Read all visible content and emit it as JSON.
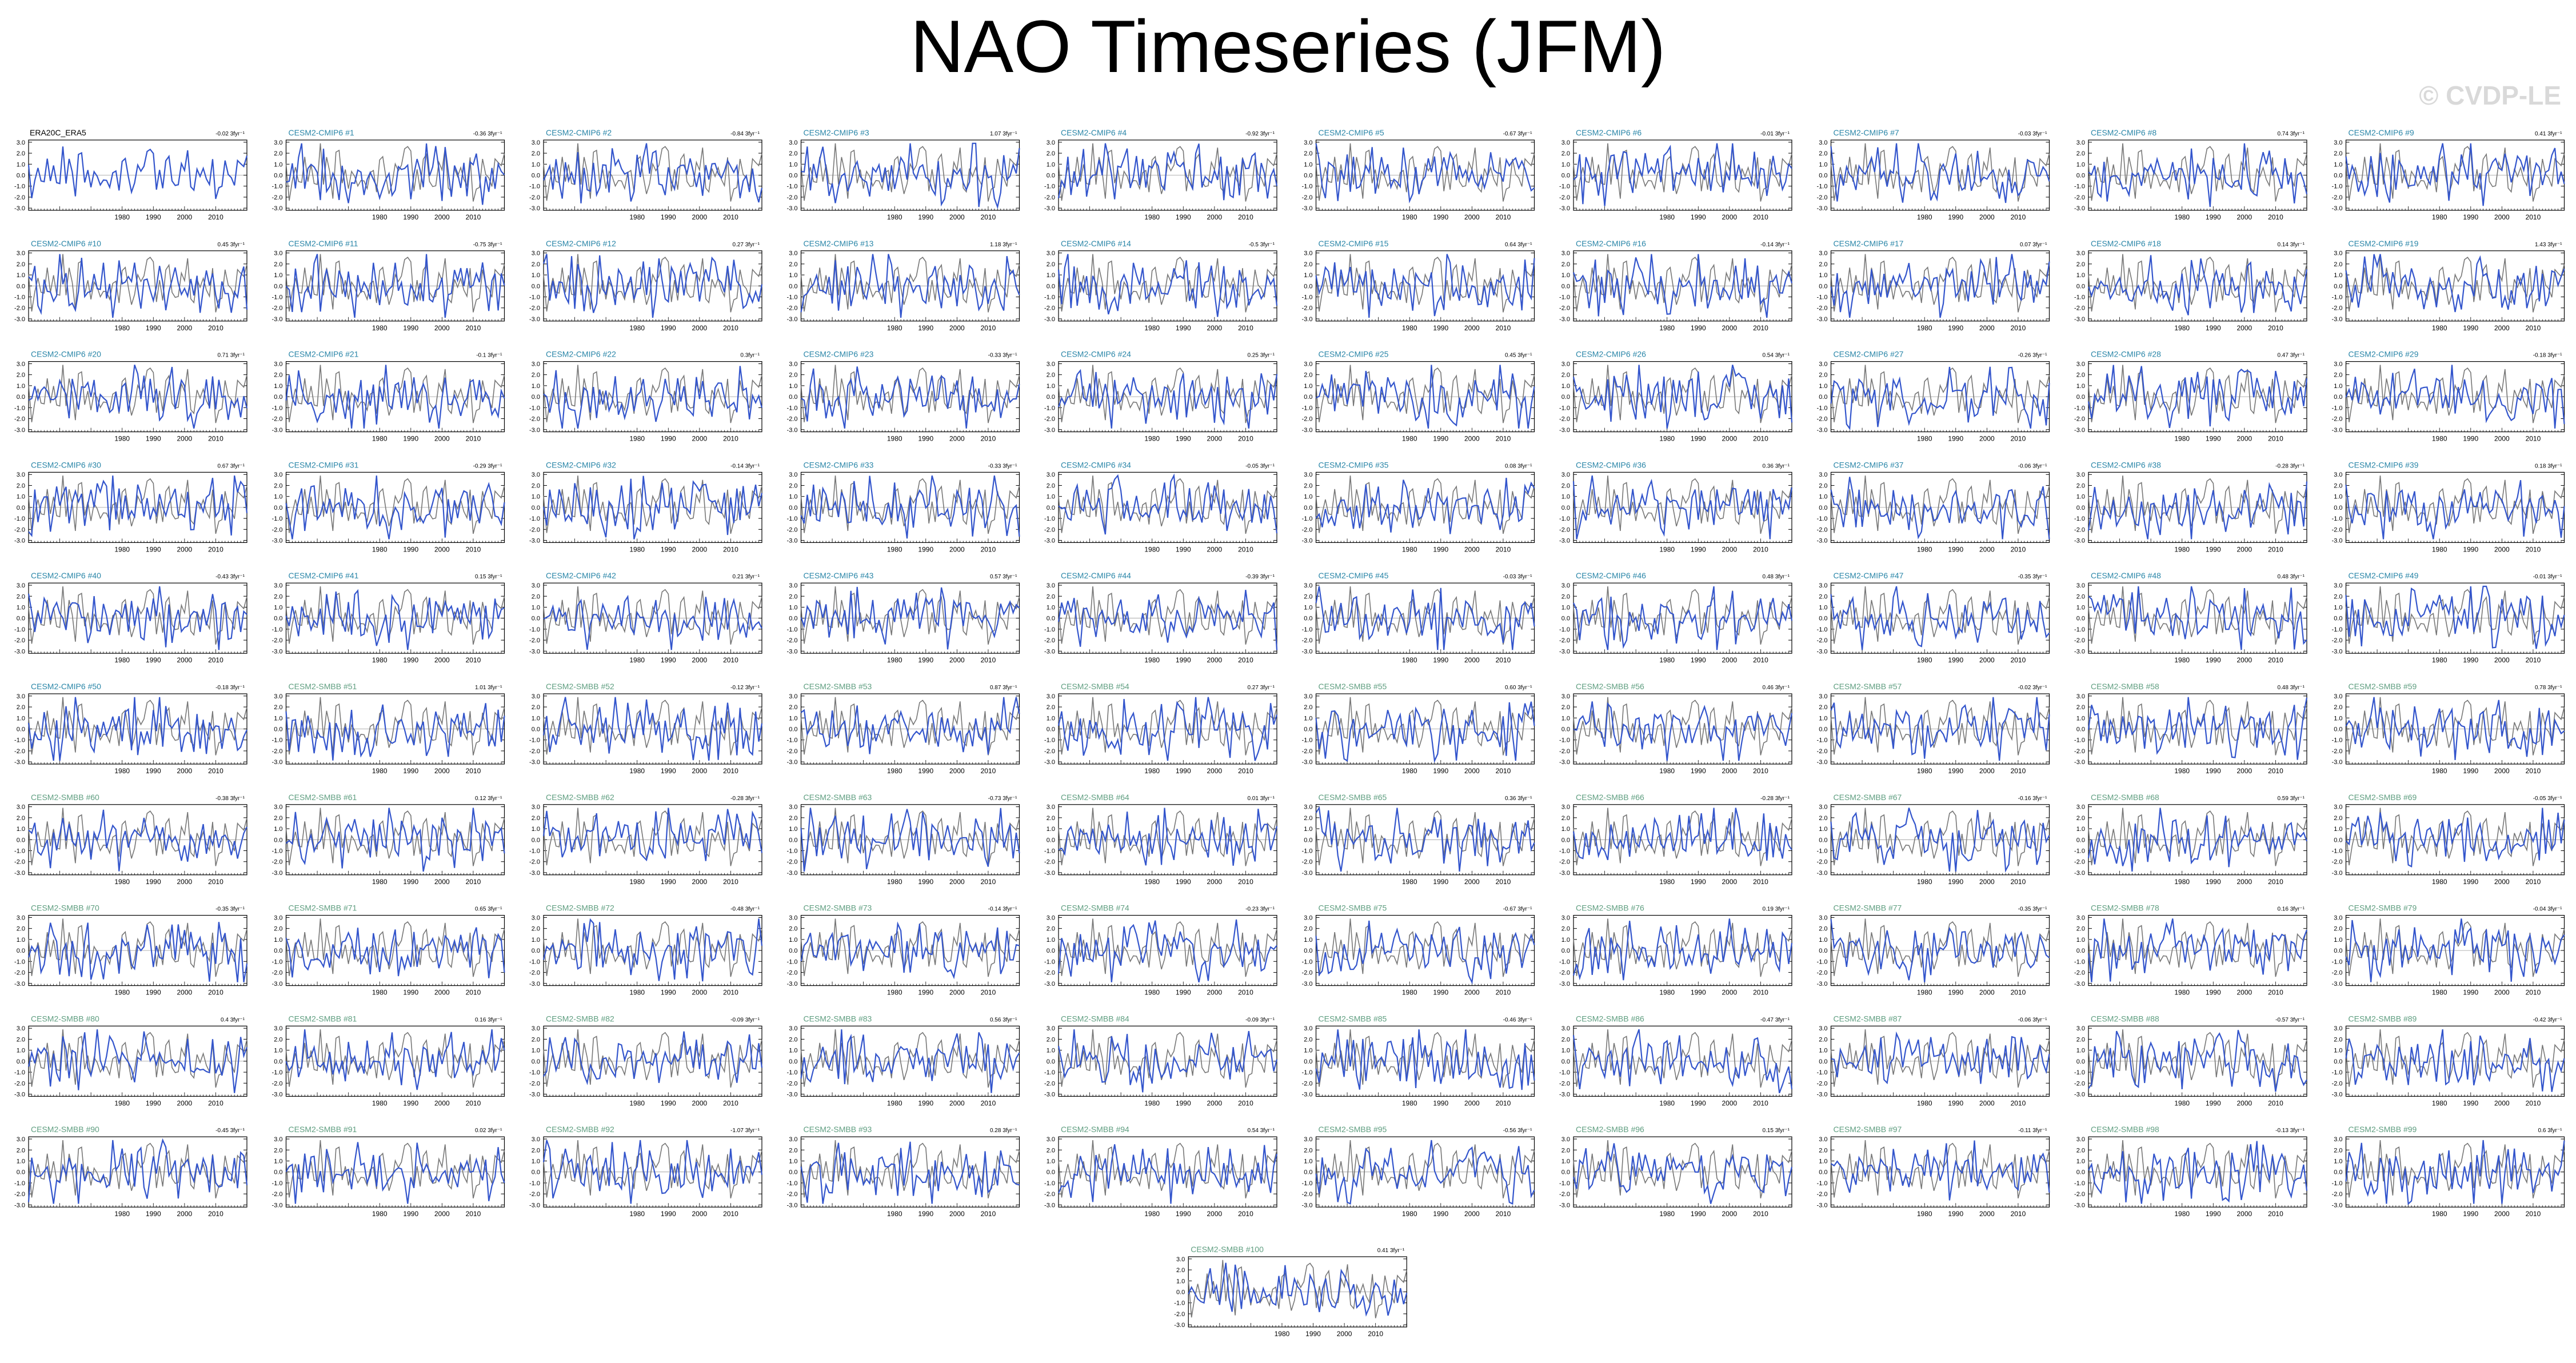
{
  "title": "NAO Timeseries (JFM)",
  "watermark": "© CVDP-LE",
  "colors": {
    "observed": "#777777",
    "model": "#3355cc",
    "cmip6_label": "#2a86a8",
    "smbb_label": "#5f9e80",
    "obs_label": "#000000"
  },
  "chart_data": {
    "type": "line",
    "years": [
      1950,
      2020
    ],
    "x_ticks": [
      1980,
      1990,
      2000,
      2010
    ],
    "y_ticks": [
      "3.0",
      "2.0",
      "1.0",
      "0.0",
      "-1.0",
      "-2.0",
      "-3.0"
    ],
    "ylim": [
      -3.2,
      3.2
    ],
    "panels": [
      {
        "label": "ERA20C_ERA5",
        "trend": "-0.02 3fyr⁻¹",
        "group": "obs"
      },
      {
        "label": "CESM2-CMIP6 #1",
        "trend": "-0.36 3fyr⁻¹",
        "group": "cmip6"
      },
      {
        "label": "CESM2-CMIP6 #2",
        "trend": "-0.84 3fyr⁻¹",
        "group": "cmip6"
      },
      {
        "label": "CESM2-CMIP6 #3",
        "trend": "1.07 3fyr⁻¹",
        "group": "cmip6"
      },
      {
        "label": "CESM2-CMIP6 #4",
        "trend": "-0.92 3fyr⁻¹",
        "group": "cmip6"
      },
      {
        "label": "CESM2-CMIP6 #5",
        "trend": "-0.67 3fyr⁻¹",
        "group": "cmip6"
      },
      {
        "label": "CESM2-CMIP6 #6",
        "trend": "-0.01 3fyr⁻¹",
        "group": "cmip6"
      },
      {
        "label": "CESM2-CMIP6 #7",
        "trend": "-0.03 3fyr⁻¹",
        "group": "cmip6"
      },
      {
        "label": "CESM2-CMIP6 #8",
        "trend": "0.74 3fyr⁻¹",
        "group": "cmip6"
      },
      {
        "label": "CESM2-CMIP6 #9",
        "trend": "0.41 3fyr⁻¹",
        "group": "cmip6"
      },
      {
        "label": "CESM2-CMIP6 #10",
        "trend": "0.45 3fyr⁻¹",
        "group": "cmip6"
      },
      {
        "label": "CESM2-CMIP6 #11",
        "trend": "-0.75 3fyr⁻¹",
        "group": "cmip6"
      },
      {
        "label": "CESM2-CMIP6 #12",
        "trend": "0.27 3fyr⁻¹",
        "group": "cmip6"
      },
      {
        "label": "CESM2-CMIP6 #13",
        "trend": "1.18 3fyr⁻¹",
        "group": "cmip6"
      },
      {
        "label": "CESM2-CMIP6 #14",
        "trend": "-0.5 3fyr⁻¹",
        "group": "cmip6"
      },
      {
        "label": "CESM2-CMIP6 #15",
        "trend": "0.64 3fyr⁻¹",
        "group": "cmip6"
      },
      {
        "label": "CESM2-CMIP6 #16",
        "trend": "-0.14 3fyr⁻¹",
        "group": "cmip6"
      },
      {
        "label": "CESM2-CMIP6 #17",
        "trend": "0.07 3fyr⁻¹",
        "group": "cmip6"
      },
      {
        "label": "CESM2-CMIP6 #18",
        "trend": "0.14 3fyr⁻¹",
        "group": "cmip6"
      },
      {
        "label": "CESM2-CMIP6 #19",
        "trend": "1.43 3fyr⁻¹",
        "group": "cmip6"
      },
      {
        "label": "CESM2-CMIP6 #20",
        "trend": "0.71 3fyr⁻¹",
        "group": "cmip6"
      },
      {
        "label": "CESM2-CMIP6 #21",
        "trend": "-0.1 3fyr⁻¹",
        "group": "cmip6"
      },
      {
        "label": "CESM2-CMIP6 #22",
        "trend": "0.3fyr⁻¹",
        "group": "cmip6"
      },
      {
        "label": "CESM2-CMIP6 #23",
        "trend": "-0.33 3fyr⁻¹",
        "group": "cmip6"
      },
      {
        "label": "CESM2-CMIP6 #24",
        "trend": "0.25 3fyr⁻¹",
        "group": "cmip6"
      },
      {
        "label": "CESM2-CMIP6 #25",
        "trend": "0.45 3fyr⁻¹",
        "group": "cmip6"
      },
      {
        "label": "CESM2-CMIP6 #26",
        "trend": "0.54 3fyr⁻¹",
        "group": "cmip6"
      },
      {
        "label": "CESM2-CMIP6 #27",
        "trend": "-0.26 3fyr⁻¹",
        "group": "cmip6"
      },
      {
        "label": "CESM2-CMIP6 #28",
        "trend": "0.47 3fyr⁻¹",
        "group": "cmip6"
      },
      {
        "label": "CESM2-CMIP6 #29",
        "trend": "-0.18 3fyr⁻¹",
        "group": "cmip6"
      },
      {
        "label": "CESM2-CMIP6 #30",
        "trend": "0.67 3fyr⁻¹",
        "group": "cmip6"
      },
      {
        "label": "CESM2-CMIP6 #31",
        "trend": "-0.29 3fyr⁻¹",
        "group": "cmip6"
      },
      {
        "label": "CESM2-CMIP6 #32",
        "trend": "-0.14 3fyr⁻¹",
        "group": "cmip6"
      },
      {
        "label": "CESM2-CMIP6 #33",
        "trend": "-0.33 3fyr⁻¹",
        "group": "cmip6"
      },
      {
        "label": "CESM2-CMIP6 #34",
        "trend": "-0.05 3fyr⁻¹",
        "group": "cmip6"
      },
      {
        "label": "CESM2-CMIP6 #35",
        "trend": "0.08 3fyr⁻¹",
        "group": "cmip6"
      },
      {
        "label": "CESM2-CMIP6 #36",
        "trend": "0.36 3fyr⁻¹",
        "group": "cmip6"
      },
      {
        "label": "CESM2-CMIP6 #37",
        "trend": "-0.06 3fyr⁻¹",
        "group": "cmip6"
      },
      {
        "label": "CESM2-CMIP6 #38",
        "trend": "-0.28 3fyr⁻¹",
        "group": "cmip6"
      },
      {
        "label": "CESM2-CMIP6 #39",
        "trend": "0.18 3fyr⁻¹",
        "group": "cmip6"
      },
      {
        "label": "CESM2-CMIP6 #40",
        "trend": "-0.43 3fyr⁻¹",
        "group": "cmip6"
      },
      {
        "label": "CESM2-CMIP6 #41",
        "trend": "0.15 3fyr⁻¹",
        "group": "cmip6"
      },
      {
        "label": "CESM2-CMIP6 #42",
        "trend": "0.21 3fyr⁻¹",
        "group": "cmip6"
      },
      {
        "label": "CESM2-CMIP6 #43",
        "trend": "0.57 3fyr⁻¹",
        "group": "cmip6"
      },
      {
        "label": "CESM2-CMIP6 #44",
        "trend": "-0.39 3fyr⁻¹",
        "group": "cmip6"
      },
      {
        "label": "CESM2-CMIP6 #45",
        "trend": "-0.03 3fyr⁻¹",
        "group": "cmip6"
      },
      {
        "label": "CESM2-CMIP6 #46",
        "trend": "0.48 3fyr⁻¹",
        "group": "cmip6"
      },
      {
        "label": "CESM2-CMIP6 #47",
        "trend": "-0.35 3fyr⁻¹",
        "group": "cmip6"
      },
      {
        "label": "CESM2-CMIP6 #48",
        "trend": "0.48 3fyr⁻¹",
        "group": "cmip6"
      },
      {
        "label": "CESM2-CMIP6 #49",
        "trend": "-0.01 3fyr⁻¹",
        "group": "cmip6"
      },
      {
        "label": "CESM2-CMIP6 #50",
        "trend": "-0.18 3fyr⁻¹",
        "group": "cmip6"
      },
      {
        "label": "CESM2-SMBB #51",
        "trend": "1.01 3fyr⁻¹",
        "group": "smbb"
      },
      {
        "label": "CESM2-SMBB #52",
        "trend": "-0.12 3fyr⁻¹",
        "group": "smbb"
      },
      {
        "label": "CESM2-SMBB #53",
        "trend": "0.87 3fyr⁻¹",
        "group": "smbb"
      },
      {
        "label": "CESM2-SMBB #54",
        "trend": "0.27 3fyr⁻¹",
        "group": "smbb"
      },
      {
        "label": "CESM2-SMBB #55",
        "trend": "0.60 3fyr⁻¹",
        "group": "smbb"
      },
      {
        "label": "CESM2-SMBB #56",
        "trend": "0.46 3fyr⁻¹",
        "group": "smbb"
      },
      {
        "label": "CESM2-SMBB #57",
        "trend": "-0.02 3fyr⁻¹",
        "group": "smbb"
      },
      {
        "label": "CESM2-SMBB #58",
        "trend": "0.48 3fyr⁻¹",
        "group": "smbb"
      },
      {
        "label": "CESM2-SMBB #59",
        "trend": "0.78 3fyr⁻¹",
        "group": "smbb"
      },
      {
        "label": "CESM2-SMBB #60",
        "trend": "-0.38 3fyr⁻¹",
        "group": "smbb"
      },
      {
        "label": "CESM2-SMBB #61",
        "trend": "0.12 3fyr⁻¹",
        "group": "smbb"
      },
      {
        "label": "CESM2-SMBB #62",
        "trend": "-0.28 3fyr⁻¹",
        "group": "smbb"
      },
      {
        "label": "CESM2-SMBB #63",
        "trend": "-0.73 3fyr⁻¹",
        "group": "smbb"
      },
      {
        "label": "CESM2-SMBB #64",
        "trend": "0.01 3fyr⁻¹",
        "group": "smbb"
      },
      {
        "label": "CESM2-SMBB #65",
        "trend": "0.36 3fyr⁻¹",
        "group": "smbb"
      },
      {
        "label": "CESM2-SMBB #66",
        "trend": "-0.28 3fyr⁻¹",
        "group": "smbb"
      },
      {
        "label": "CESM2-SMBB #67",
        "trend": "-0.16 3fyr⁻¹",
        "group": "smbb"
      },
      {
        "label": "CESM2-SMBB #68",
        "trend": "0.59 3fyr⁻¹",
        "group": "smbb"
      },
      {
        "label": "CESM2-SMBB #69",
        "trend": "-0.05 3fyr⁻¹",
        "group": "smbb"
      },
      {
        "label": "CESM2-SMBB #70",
        "trend": "-0.35 3fyr⁻¹",
        "group": "smbb"
      },
      {
        "label": "CESM2-SMBB #71",
        "trend": "0.65 3fyr⁻¹",
        "group": "smbb"
      },
      {
        "label": "CESM2-SMBB #72",
        "trend": "-0.48 3fyr⁻¹",
        "group": "smbb"
      },
      {
        "label": "CESM2-SMBB #73",
        "trend": "-0.14 3fyr⁻¹",
        "group": "smbb"
      },
      {
        "label": "CESM2-SMBB #74",
        "trend": "-0.23 3fyr⁻¹",
        "group": "smbb"
      },
      {
        "label": "CESM2-SMBB #75",
        "trend": "-0.67 3fyr⁻¹",
        "group": "smbb"
      },
      {
        "label": "CESM2-SMBB #76",
        "trend": "0.19 3fyr⁻¹",
        "group": "smbb"
      },
      {
        "label": "CESM2-SMBB #77",
        "trend": "-0.35 3fyr⁻¹",
        "group": "smbb"
      },
      {
        "label": "CESM2-SMBB #78",
        "trend": "0.16 3fyr⁻¹",
        "group": "smbb"
      },
      {
        "label": "CESM2-SMBB #79",
        "trend": "-0.04 3fyr⁻¹",
        "group": "smbb"
      },
      {
        "label": "CESM2-SMBB #80",
        "trend": "0.4 3fyr⁻¹",
        "group": "smbb"
      },
      {
        "label": "CESM2-SMBB #81",
        "trend": "0.16 3fyr⁻¹",
        "group": "smbb"
      },
      {
        "label": "CESM2-SMBB #82",
        "trend": "-0.09 3fyr⁻¹",
        "group": "smbb"
      },
      {
        "label": "CESM2-SMBB #83",
        "trend": "0.56 3fyr⁻¹",
        "group": "smbb"
      },
      {
        "label": "CESM2-SMBB #84",
        "trend": "-0.09 3fyr⁻¹",
        "group": "smbb"
      },
      {
        "label": "CESM2-SMBB #85",
        "trend": "-0.46 3fyr⁻¹",
        "group": "smbb"
      },
      {
        "label": "CESM2-SMBB #86",
        "trend": "-0.47 3fyr⁻¹",
        "group": "smbb"
      },
      {
        "label": "CESM2-SMBB #87",
        "trend": "-0.06 3fyr⁻¹",
        "group": "smbb"
      },
      {
        "label": "CESM2-SMBB #88",
        "trend": "-0.57 3fyr⁻¹",
        "group": "smbb"
      },
      {
        "label": "CESM2-SMBB #89",
        "trend": "-0.42 3fyr⁻¹",
        "group": "smbb"
      },
      {
        "label": "CESM2-SMBB #90",
        "trend": "-0.45 3fyr⁻¹",
        "group": "smbb"
      },
      {
        "label": "CESM2-SMBB #91",
        "trend": "0.02 3fyr⁻¹",
        "group": "smbb"
      },
      {
        "label": "CESM2-SMBB #92",
        "trend": "-1.07 3fyr⁻¹",
        "group": "smbb"
      },
      {
        "label": "CESM2-SMBB #93",
        "trend": "0.28 3fyr⁻¹",
        "group": "smbb"
      },
      {
        "label": "CESM2-SMBB #94",
        "trend": "0.54 3fyr⁻¹",
        "group": "smbb"
      },
      {
        "label": "CESM2-SMBB #95",
        "trend": "-0.56 3fyr⁻¹",
        "group": "smbb"
      },
      {
        "label": "CESM2-SMBB #96",
        "trend": "0.15 3fyr⁻¹",
        "group": "smbb"
      },
      {
        "label": "CESM2-SMBB #97",
        "trend": "-0.11 3fyr⁻¹",
        "group": "smbb"
      },
      {
        "label": "CESM2-SMBB #98",
        "trend": "-0.13 3fyr⁻¹",
        "group": "smbb"
      },
      {
        "label": "CESM2-SMBB #99",
        "trend": "0.6 3fyr⁻¹",
        "group": "smbb"
      },
      {
        "label": "CESM2-SMBB #100",
        "trend": "0.41 3fyr⁻¹",
        "group": "smbb"
      }
    ]
  }
}
